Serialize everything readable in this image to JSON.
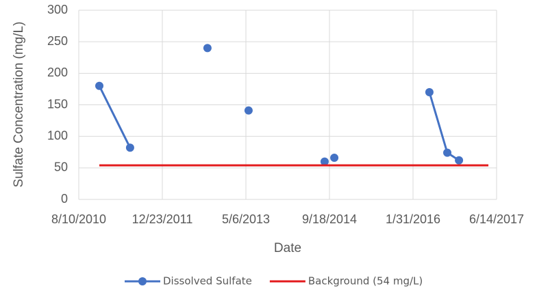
{
  "chart_data": {
    "type": "line",
    "xlabel": "Date",
    "ylabel": "Sulfate Concentration  (mg/L)",
    "xlim": [
      "2010-08-10",
      "2017-06-14"
    ],
    "xticks": [
      {
        "value": "2010-08-10",
        "label": "8/10/2010"
      },
      {
        "value": "2011-12-23",
        "label": "12/23/2011"
      },
      {
        "value": "2013-05-06",
        "label": "5/6/2013"
      },
      {
        "value": "2014-09-18",
        "label": "9/18/2014"
      },
      {
        "value": "2016-01-31",
        "label": "1/31/2016"
      },
      {
        "value": "2017-06-14",
        "label": "6/14/2017"
      }
    ],
    "ylim": [
      0,
      300
    ],
    "yticks": [
      0,
      50,
      100,
      150,
      200,
      250,
      300
    ],
    "grid": true,
    "legend": "bottom",
    "series": [
      {
        "name": "Dissolved Sulfate",
        "color": "#4472c4",
        "markers": true,
        "x": [
          "2010-12-11",
          "2011-06-13",
          null,
          "2012-09-18",
          null,
          "2013-05-22",
          null,
          "2014-08-20",
          null,
          "2014-10-17",
          null,
          "2016-05-08",
          "2016-08-23",
          "2016-11-01"
        ],
        "values": [
          180,
          82,
          null,
          240,
          null,
          141,
          null,
          60,
          null,
          66,
          null,
          170,
          74,
          62
        ]
      },
      {
        "name": "Background (54 mg/L)",
        "color": "#e31a1c",
        "markers": false,
        "x": [
          "2010-12-11",
          "2017-04-26"
        ],
        "values": [
          54,
          54
        ]
      }
    ]
  }
}
